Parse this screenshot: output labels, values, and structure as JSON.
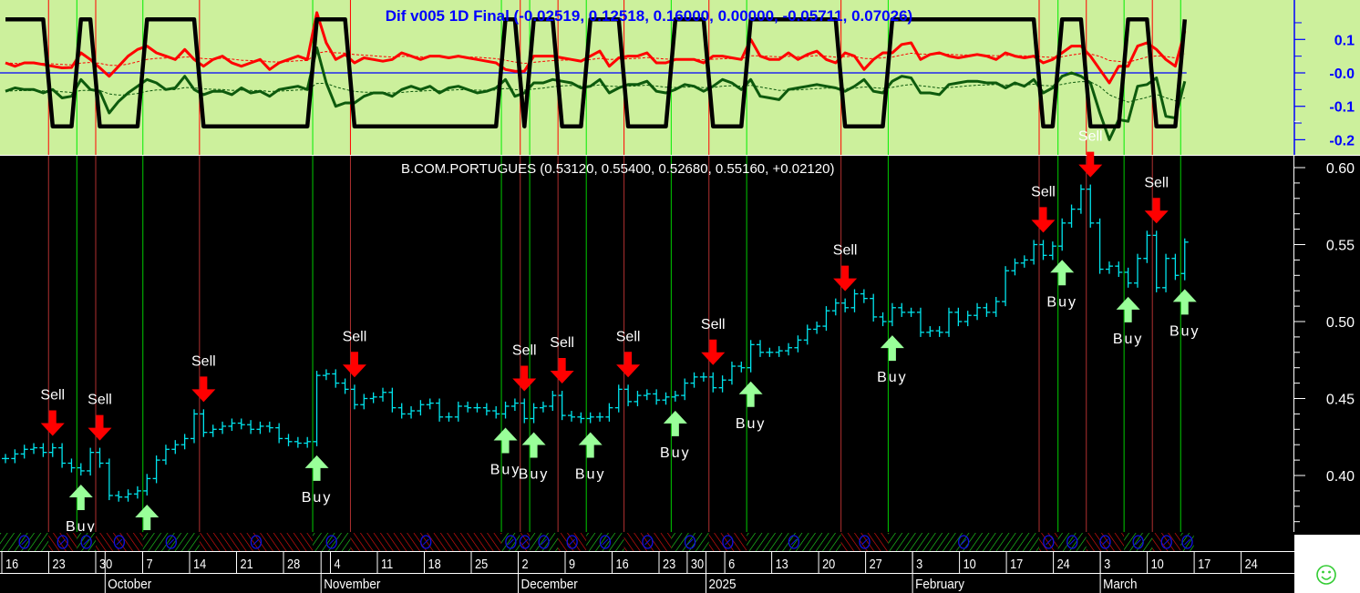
{
  "indicator_panel": {
    "title": "Dif v005 1D Final (-0.02519, 0.12518, 0.16000, 0.00000, -0.05711, 0.07026)",
    "axis_labels": [
      "0.1",
      "-0.0",
      "-0.1",
      "-0.2"
    ],
    "background": "#ccf09c",
    "title_color": "#0000ff"
  },
  "price_panel": {
    "title": "B.COM.PORTUGUES (0.53120, 0.55400, 0.52680, 0.55160, +0.02120)",
    "axis_labels": [
      "0.60",
      "0.55",
      "0.50",
      "0.45",
      "0.40"
    ],
    "bar_color": "#00e5ee"
  },
  "time_axis": {
    "week_labels": [
      "16",
      "23",
      "30",
      "7",
      "14",
      "21",
      "28",
      "4",
      "11",
      "18",
      "25",
      "2",
      "9",
      "16",
      "23",
      "30",
      "6",
      "13",
      "20",
      "27",
      "3",
      "10",
      "17",
      "24",
      "3",
      "10",
      "17",
      "24"
    ],
    "month_labels": [
      "October",
      "November",
      "December",
      "2025",
      "February",
      "March"
    ]
  },
  "status_icon": "smiley-icon",
  "chart_data": [
    {
      "type": "line",
      "name_printed": "Dif v005 1D Final",
      "ylim": [
        -0.22,
        0.22
      ],
      "yticks": [
        0.1,
        0.0,
        -0.1,
        -0.2
      ],
      "series": [
        {
          "color": "#ff0000",
          "last": 0.12518,
          "values": [
            0.03,
            0.02,
            0.03,
            0.03,
            0.025,
            0.02,
            0.015,
            0.016,
            0.06,
            0.04,
            0.015,
            -0.01,
            0.02,
            0.05,
            0.07,
            0.08,
            0.06,
            0.05,
            0.04,
            0.07,
            0.04,
            0.02,
            0.04,
            0.05,
            0.03,
            0.02,
            0.03,
            0.04,
            0.01,
            0.03,
            0.04,
            0.05,
            0.04,
            0.18,
            0.09,
            0.04,
            0.055,
            0.03,
            0.045,
            0.04,
            0.035,
            0.04,
            0.06,
            0.05,
            0.04,
            0.05,
            0.05,
            0.045,
            0.05,
            0.045,
            0.04,
            0.035,
            0.03,
            0.01,
            0.005,
            0.005,
            0.05,
            0.05,
            0.05,
            0.045,
            0.04,
            0.035,
            0.05,
            0.065,
            0.02,
            0.045,
            0.05,
            0.05,
            0.06,
            0.03,
            0.03,
            0.04,
            0.04,
            0.04,
            0.03,
            0.05,
            0.05,
            0.045,
            0.04,
            0.1,
            0.05,
            0.04,
            0.04,
            0.06,
            0.04,
            0.055,
            0.065,
            0.04,
            0.03,
            0.06,
            0.05,
            0.01,
            0.04,
            0.06,
            0.06,
            0.085,
            0.09,
            0.04,
            0.055,
            0.06,
            0.05,
            0.045,
            0.05,
            0.055,
            0.05,
            0.04,
            0.06,
            0.05,
            0.045,
            0.05,
            0.03,
            0.04,
            0.06,
            0.08,
            0.08,
            0.05,
            0.01,
            -0.03,
            0.02,
            0.02,
            0.08,
            0.09,
            0.07,
            0.04,
            0.02,
            0.12518
          ]
        },
        {
          "color": "#0d5a0d",
          "last": -0.02519,
          "values": [
            -0.055,
            -0.045,
            -0.05,
            -0.05,
            -0.06,
            -0.05,
            -0.075,
            -0.07,
            -0.02,
            -0.05,
            -0.055,
            -0.12,
            -0.085,
            -0.06,
            -0.04,
            -0.02,
            -0.03,
            -0.05,
            -0.045,
            -0.01,
            -0.05,
            -0.065,
            -0.055,
            -0.055,
            -0.065,
            -0.045,
            -0.06,
            -0.055,
            -0.07,
            -0.05,
            -0.045,
            -0.04,
            -0.05,
            0.075,
            -0.03,
            -0.1,
            -0.09,
            -0.09,
            -0.07,
            -0.06,
            -0.06,
            -0.07,
            -0.05,
            -0.04,
            -0.05,
            -0.04,
            -0.06,
            -0.045,
            -0.04,
            -0.05,
            -0.06,
            -0.055,
            -0.045,
            -0.02,
            -0.07,
            -0.06,
            -0.03,
            -0.03,
            -0.02,
            -0.025,
            -0.03,
            -0.045,
            -0.04,
            -0.02,
            -0.06,
            -0.045,
            -0.035,
            -0.035,
            -0.025,
            -0.055,
            -0.06,
            -0.05,
            -0.035,
            -0.04,
            -0.055,
            -0.04,
            -0.02,
            -0.03,
            -0.05,
            -0.02,
            -0.07,
            -0.075,
            -0.08,
            -0.05,
            -0.045,
            -0.04,
            -0.035,
            -0.04,
            -0.045,
            -0.055,
            -0.04,
            -0.02,
            -0.055,
            -0.06,
            -0.025,
            -0.01,
            -0.015,
            -0.06,
            -0.06,
            -0.065,
            -0.035,
            -0.03,
            -0.025,
            -0.025,
            -0.03,
            -0.03,
            -0.045,
            -0.03,
            -0.04,
            -0.02,
            -0.06,
            -0.045,
            -0.01,
            0.0,
            -0.01,
            -0.03,
            -0.12,
            -0.2,
            -0.14,
            -0.145,
            -0.04,
            -0.035,
            -0.015,
            -0.13,
            -0.135,
            -0.02519
          ]
        },
        {
          "color": "#000000",
          "label": "signal state",
          "high": 0.16,
          "low": -0.16,
          "last": 0.16
        },
        {
          "color": "#0000ff",
          "label": "zero line",
          "value": 0.0
        },
        {
          "color": "#0d5a0d",
          "style": "dashed",
          "last": -0.05711
        },
        {
          "color": "#ff0000",
          "style": "dashed",
          "last": 0.07026
        }
      ]
    },
    {
      "type": "ohlc",
      "ylim": [
        0.36,
        0.61
      ],
      "yticks": [
        0.6,
        0.55,
        0.5,
        0.45,
        0.4
      ],
      "last_bar": {
        "open": 0.5312,
        "high": 0.554,
        "low": 0.5268,
        "close": 0.5516,
        "change": 0.0212
      },
      "week_tick_bars": [
        0,
        5,
        10,
        15,
        20,
        25,
        30,
        35,
        40,
        45,
        50,
        55,
        60,
        65,
        70,
        73,
        77,
        82,
        87,
        92,
        97,
        102,
        107,
        112,
        117,
        122,
        127,
        132
      ],
      "month_start_bars": [
        11,
        34,
        55,
        75,
        97,
        117
      ],
      "close": [
        0.411,
        0.414,
        0.417,
        0.418,
        0.415,
        0.418,
        0.408,
        0.405,
        0.403,
        0.415,
        0.408,
        0.387,
        0.386,
        0.388,
        0.39,
        0.398,
        0.41,
        0.417,
        0.42,
        0.424,
        0.44,
        0.428,
        0.43,
        0.432,
        0.434,
        0.433,
        0.43,
        0.432,
        0.431,
        0.424,
        0.422,
        0.421,
        0.422,
        0.465,
        0.466,
        0.46,
        0.456,
        0.446,
        0.45,
        0.451,
        0.454,
        0.444,
        0.44,
        0.442,
        0.446,
        0.447,
        0.438,
        0.438,
        0.445,
        0.444,
        0.444,
        0.442,
        0.44,
        0.445,
        0.447,
        0.437,
        0.444,
        0.445,
        0.452,
        0.439,
        0.438,
        0.437,
        0.438,
        0.438,
        0.444,
        0.456,
        0.448,
        0.452,
        0.453,
        0.449,
        0.451,
        0.452,
        0.46,
        0.464,
        0.464,
        0.457,
        0.462,
        0.471,
        0.47,
        0.485,
        0.48,
        0.48,
        0.481,
        0.483,
        0.488,
        0.495,
        0.497,
        0.507,
        0.512,
        0.509,
        0.518,
        0.515,
        0.503,
        0.5,
        0.509,
        0.506,
        0.506,
        0.493,
        0.494,
        0.493,
        0.506,
        0.5,
        0.504,
        0.509,
        0.506,
        0.513,
        0.533,
        0.538,
        0.54,
        0.55,
        0.543,
        0.549,
        0.564,
        0.573,
        0.586,
        0.564,
        0.534,
        0.536,
        0.532,
        0.525,
        0.541,
        0.556,
        0.522,
        0.541,
        0.53,
        0.5516
      ],
      "signals": {
        "sell_label": "Sell",
        "buy_label": "Buy",
        "sell_bars": [
          5,
          10,
          21,
          37,
          55,
          59,
          66,
          75,
          89,
          110,
          115,
          122
        ],
        "buy_bars": [
          8,
          15,
          33,
          53,
          56,
          62,
          71,
          79,
          94,
          112,
          119,
          125
        ],
        "sell_color": "#ff0000",
        "buy_color": "#99ff99"
      }
    }
  ]
}
